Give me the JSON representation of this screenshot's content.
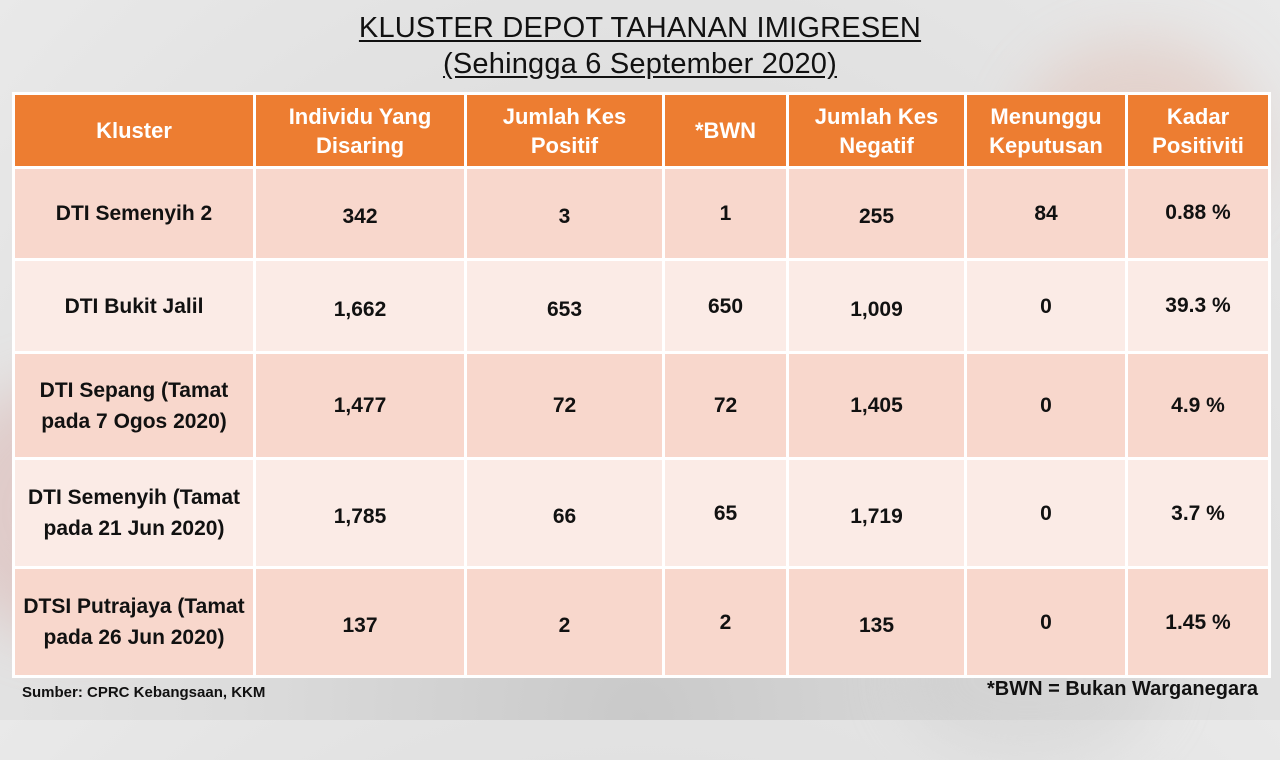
{
  "title_line1": "KLUSTER DEPOT TAHANAN IMIGRESEN",
  "title_line2": "(Sehingga 6 September 2020)",
  "headers": [
    "Kluster",
    "Individu Yang Disaring",
    "Jumlah Kes Positif",
    "*BWN",
    "Jumlah Kes Negatif",
    "Menunggu Keputusan",
    "Kadar Positiviti"
  ],
  "rows": [
    {
      "kluster": "DTI Semenyih 2",
      "disaring": "342",
      "positif": "3",
      "bwn": "1",
      "negatif": "255",
      "menunggu": "84",
      "kadar": "0.88 %"
    },
    {
      "kluster": "DTI Bukit Jalil",
      "disaring": "1,662",
      "positif": "653",
      "bwn": "650",
      "negatif": "1,009",
      "menunggu": "0",
      "kadar": "39.3 %"
    },
    {
      "kluster": "DTI Sepang (Tamat pada 7 Ogos 2020)",
      "disaring": "1,477",
      "positif": "72",
      "bwn": "72",
      "negatif": "1,405",
      "menunggu": "0",
      "kadar": "4.9 %"
    },
    {
      "kluster": "DTI Semenyih (Tamat pada 21 Jun 2020)",
      "disaring": "1,785",
      "positif": "66",
      "bwn": "65",
      "negatif": "1,719",
      "menunggu": "0",
      "kadar": "3.7 %"
    },
    {
      "kluster": "DTSI Putrajaya (Tamat pada 26 Jun 2020)",
      "disaring": "137",
      "positif": "2",
      "bwn": "2",
      "negatif": "135",
      "menunggu": "0",
      "kadar": "1.45 %"
    }
  ],
  "source": "Sumber: CPRC Kebangsaan, KKM",
  "footnote": "*BWN = Bukan Warganegara",
  "colors": {
    "header_bg": "#ed7d31",
    "row_dark": "#f8d7cc",
    "row_light": "#fbebe6"
  }
}
